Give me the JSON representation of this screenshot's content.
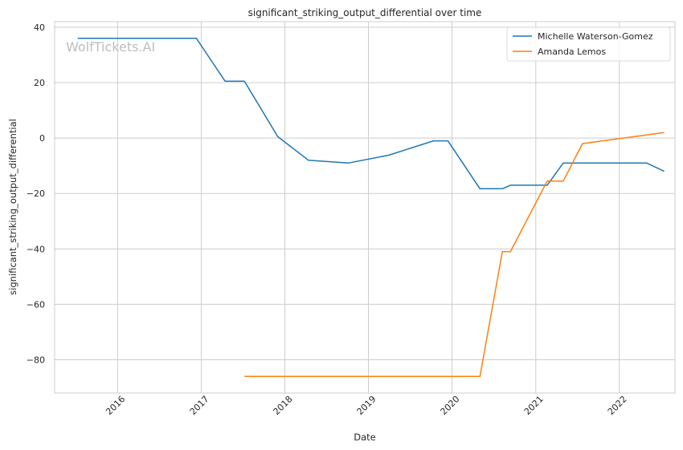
{
  "chart_data": {
    "type": "line",
    "title": "significant_striking_output_differential over time",
    "xlabel": "Date",
    "ylabel": "significant_striking_output_differential",
    "x_type": "date",
    "xlim": [
      "2015-04-01",
      "2022-09-01"
    ],
    "ylim": [
      -92,
      42
    ],
    "x_ticks": [
      "2016-01-01",
      "2017-01-01",
      "2018-01-01",
      "2019-01-01",
      "2020-01-01",
      "2021-01-01",
      "2022-01-01"
    ],
    "x_tick_labels": [
      "2016",
      "2017",
      "2018",
      "2019",
      "2020",
      "2021",
      "2022"
    ],
    "y_ticks": [
      40,
      20,
      0,
      -20,
      -40,
      -60,
      -80
    ],
    "y_tick_labels": [
      "40",
      "20",
      "0",
      "−20",
      "−40",
      "−60",
      "−80"
    ],
    "grid": true,
    "legend_position": "top-right",
    "watermark": "WolfTickets.AI",
    "series": [
      {
        "name": "Michelle Waterson-Gomez",
        "color": "#1f77b4",
        "points": [
          [
            "2015-07-11",
            36
          ],
          [
            "2016-12-10",
            36
          ],
          [
            "2017-04-15",
            20.5
          ],
          [
            "2017-07-08",
            20.5
          ],
          [
            "2017-12-01",
            0.5
          ],
          [
            "2018-04-14",
            -8
          ],
          [
            "2018-10-06",
            -9
          ],
          [
            "2019-03-30",
            -6.2
          ],
          [
            "2019-10-12",
            -1
          ],
          [
            "2019-12-14",
            -1
          ],
          [
            "2020-05-02",
            -18.3
          ],
          [
            "2020-08-08",
            -18.3
          ],
          [
            "2020-09-12",
            -17
          ],
          [
            "2021-02-20",
            -17
          ],
          [
            "2021-05-01",
            -9
          ],
          [
            "2022-04-30",
            -9
          ],
          [
            "2022-07-16",
            -12
          ]
        ]
      },
      {
        "name": "Amanda Lemos",
        "color": "#ff7f0e",
        "points": [
          [
            "2017-07-08",
            -86
          ],
          [
            "2020-05-02",
            -86
          ],
          [
            "2020-08-08",
            -41
          ],
          [
            "2020-09-12",
            -41
          ],
          [
            "2021-02-20",
            -15.5
          ],
          [
            "2021-05-01",
            -15.5
          ],
          [
            "2021-07-24",
            -2
          ],
          [
            "2022-07-16",
            2
          ]
        ]
      }
    ]
  }
}
